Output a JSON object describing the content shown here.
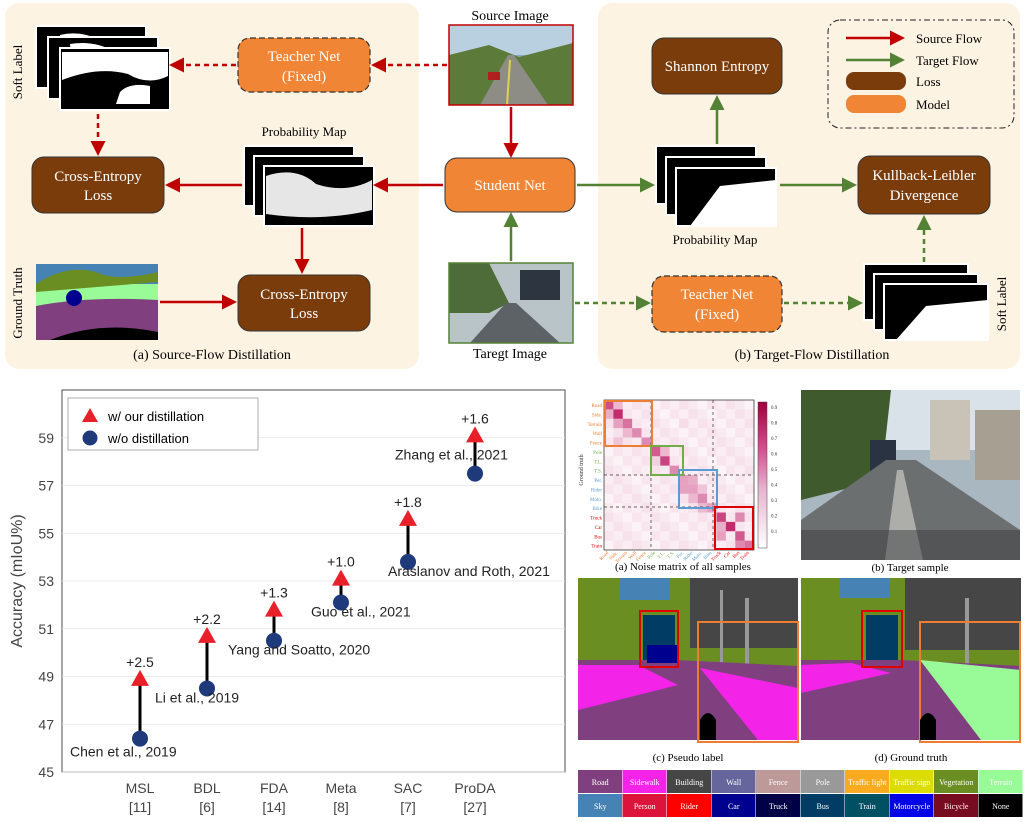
{
  "left_panel": {
    "caption": "(a) Source-Flow Distillation",
    "teacher": "Teacher Net",
    "teacher_fixed": "(Fixed)",
    "soft_label": "Soft Label",
    "ce_loss_1": "Cross-Entropy",
    "ce_loss_1b": "Loss",
    "ce_loss_2": "Cross-Entropy",
    "ce_loss_2b": "Loss",
    "prob_map": "Probability Map",
    "ground_truth": "Ground Truth"
  },
  "center": {
    "source_image": "Source Image",
    "student": "Student Net",
    "target_image": "Taregt Image"
  },
  "right_panel": {
    "caption": "(b) Target-Flow Distillation",
    "entropy": "Shannon Entropy",
    "kl_1": "Kullback-Leibler",
    "kl_2": "Divergence",
    "teacher": "Teacher Net",
    "teacher_fixed": "(Fixed)",
    "prob_map": "Probability Map",
    "soft_label": "Soft Label"
  },
  "legend": {
    "source_flow": "Source Flow",
    "target_flow": "Target Flow",
    "loss": "Loss",
    "model": "Model"
  },
  "colors": {
    "panel_bg": "#fdf3e3",
    "loss": "#7b3c0c",
    "model": "#ef8535",
    "source_arrow": "#c00000",
    "target_arrow": "#548235",
    "marker_with": "#e8202a",
    "marker_without": "#1f3a7a"
  },
  "chart_data": {
    "type": "scatter",
    "ylabel": "Accuracy (mIoU%)",
    "ylim": [
      45,
      61
    ],
    "yticks": [
      45,
      47,
      49,
      51,
      53,
      55,
      57,
      59
    ],
    "categories": [
      "MSL",
      "BDL",
      "FDA",
      "Meta",
      "SAC",
      "ProDA"
    ],
    "refs": [
      "[11]",
      "[6]",
      "[14]",
      "[8]",
      "[7]",
      "[27]"
    ],
    "legend": [
      "w/ our distillation",
      "w/o distillation"
    ],
    "series": [
      {
        "name": "w/ our distillation",
        "marker": "triangle",
        "values": [
          48.9,
          50.7,
          51.8,
          53.1,
          55.6,
          59.1
        ]
      },
      {
        "name": "w/o distillation",
        "marker": "circle",
        "values": [
          46.4,
          48.5,
          50.5,
          52.1,
          53.8,
          57.5
        ]
      }
    ],
    "gains": [
      "+2.5",
      "+2.2",
      "+1.3",
      "+1.0",
      "+1.8",
      "+1.6"
    ],
    "methods": [
      "Chen et al., 2019",
      "Li et al., 2019",
      "Yang and Soatto, 2020",
      "Guo et al., 2021",
      "Araslanov and Roth, 2021",
      "Zhang et al., 2021"
    ]
  },
  "noise_matrix": {
    "caption": "(a) Noise matrix of all samples",
    "axis_label": "Ground truth",
    "classes": [
      "Road",
      "Side.",
      "Terrain",
      "Wall",
      "Fence",
      "Pole",
      "T.L.",
      "T.S.",
      "Per.",
      "Rider",
      "Moto.",
      "Bike",
      "Truck",
      "Car",
      "Bus",
      "Train"
    ],
    "colorbar_ticks": [
      "0.9",
      "0.8",
      "0.7",
      "0.6",
      "0.5",
      "0.4",
      "0.3",
      "0.2",
      "0.1"
    ]
  },
  "panels": {
    "target_sample": "(b) Target sample",
    "pseudo_label": "(c) Pseudo label",
    "ground_truth": "(d) Ground truth"
  },
  "class_legend": {
    "row1": [
      {
        "name": "Road",
        "color": "#804080"
      },
      {
        "name": "Sidewalk",
        "color": "#f423e8"
      },
      {
        "name": "Building",
        "color": "#464646"
      },
      {
        "name": "Wall",
        "color": "#66669c"
      },
      {
        "name": "Fence",
        "color": "#be9999"
      },
      {
        "name": "Pole",
        "color": "#999999"
      },
      {
        "name": "Traffic light",
        "color": "#faaa1e"
      },
      {
        "name": "Traffic sign",
        "color": "#dcdc00"
      },
      {
        "name": "Vegetation",
        "color": "#6b8e23"
      },
      {
        "name": "Terrain",
        "color": "#98fb98"
      }
    ],
    "row2": [
      {
        "name": "Sky",
        "color": "#4682b4"
      },
      {
        "name": "Person",
        "color": "#dc143c"
      },
      {
        "name": "Rider",
        "color": "#ff0000"
      },
      {
        "name": "Car",
        "color": "#00008e"
      },
      {
        "name": "Truck",
        "color": "#000046"
      },
      {
        "name": "Bus",
        "color": "#003c64"
      },
      {
        "name": "Train",
        "color": "#005064"
      },
      {
        "name": "Motorcycle",
        "color": "#0000e6"
      },
      {
        "name": "Bicycle",
        "color": "#770b20"
      },
      {
        "name": "None",
        "color": "#000000"
      }
    ]
  }
}
